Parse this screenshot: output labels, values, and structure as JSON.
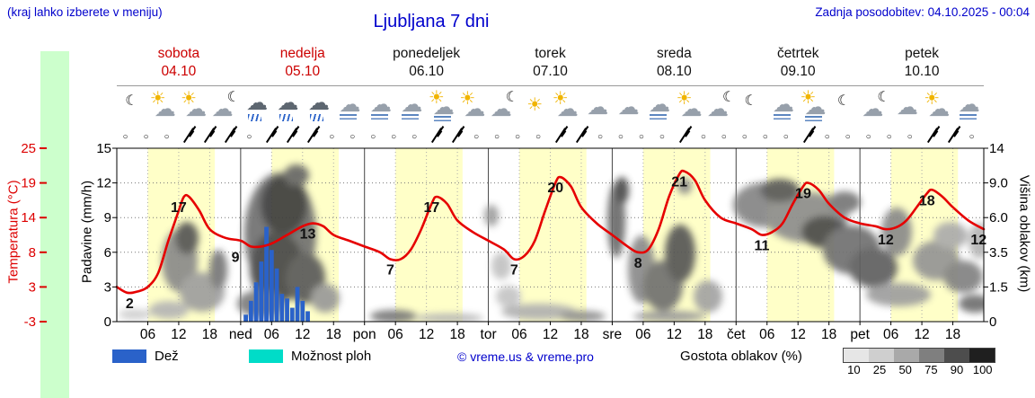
{
  "header": {
    "hint": "(kraj lahko izberete v meniju)",
    "title": "Ljubljana 7 dni",
    "updated": "Zadnja posodobitev: 04.10.2025 - 00:04"
  },
  "days": [
    {
      "name": "sobota",
      "date": "04.10",
      "weekend": true
    },
    {
      "name": "nedelja",
      "date": "05.10",
      "weekend": true
    },
    {
      "name": "ponedeljek",
      "date": "06.10",
      "weekend": false
    },
    {
      "name": "torek",
      "date": "07.10",
      "weekend": false
    },
    {
      "name": "sreda",
      "date": "08.10",
      "weekend": false
    },
    {
      "name": "četrtek",
      "date": "09.10",
      "weekend": false
    },
    {
      "name": "petek",
      "date": "10.10",
      "weekend": false
    }
  ],
  "axes": {
    "temp": {
      "label": "Temperatura (°C)",
      "ticks": [
        "25",
        "19",
        "14",
        "8",
        "3",
        "-3"
      ]
    },
    "precip": {
      "label": "Padavine (mm/h)",
      "ticks": [
        "15",
        "12",
        "9",
        "6",
        "3",
        "0"
      ]
    },
    "cloud": {
      "label": "Višina oblakov (km)",
      "ticks": [
        "14",
        "9.0",
        "6.0",
        "3.5",
        "1.5",
        "0"
      ]
    }
  },
  "day_abbrevs": [
    "ned",
    "pon",
    "tor",
    "sre",
    "čet",
    "pet"
  ],
  "hour_ticks": [
    "06",
    "12",
    "18"
  ],
  "icons": [
    "clear-night",
    "partly-sun",
    "partly-sun",
    "cloud-moon",
    "rain",
    "rain",
    "rain",
    "fog",
    "fog",
    "fog",
    "fog-sun",
    "partly-sun",
    "cloud-moon",
    "sun",
    "partly-sun",
    "cloudy",
    "cloudy",
    "fog",
    "partly-sun",
    "cloud-moon",
    "clear-night",
    "fog",
    "fog-sun",
    "clear-night",
    "cloud-moon",
    "cloudy",
    "partly-sun",
    "fog"
  ],
  "wind": {
    "calm_symbol": "○",
    "barb_hours": [
      14,
      18,
      22,
      30,
      34,
      38,
      62,
      66,
      86,
      90,
      110,
      134,
      158,
      162
    ]
  },
  "legend": {
    "rain": "Dež",
    "showers": "Možnost ploh",
    "copyright": "© vreme.us & vreme.pro",
    "cloud_density": "Gostota oblakov (%)",
    "density_values": [
      "10",
      "25",
      "50",
      "75",
      "90",
      "100"
    ]
  },
  "colors": {
    "accent_blue": "#0000cc",
    "temp_red": "#dd0000",
    "curve_red": "#e60000",
    "rain_blue": "#2a62c9",
    "showers_cyan": "#00dcc8",
    "day_band_yellow": "#ffffc8",
    "left_strip_green": "#ccffcc"
  },
  "chart_data": {
    "type": "line",
    "title": "Ljubljana 7 dni",
    "x_axis": {
      "unit": "hours",
      "range_hours": [
        0,
        168
      ],
      "day_labels": [
        "sobota 04.10",
        "nedelja 05.10",
        "ponedeljek 06.10",
        "torek 07.10",
        "sreda 08.10",
        "četrtek 09.10",
        "petek 10.10"
      ]
    },
    "temp_axis_values": [
      25,
      19,
      14,
      8,
      3,
      -3
    ],
    "precip_axis_max": 15,
    "cloud_height_axis_km": [
      14,
      9.0,
      6.0,
      3.5,
      1.5,
      0
    ],
    "temperature": {
      "name": "Temperatura",
      "unit": "°C",
      "points": [
        [
          0,
          3
        ],
        [
          2,
          2
        ],
        [
          4,
          2.2
        ],
        [
          6,
          3
        ],
        [
          8,
          5
        ],
        [
          10,
          10
        ],
        [
          12,
          15
        ],
        [
          13,
          17
        ],
        [
          14,
          17
        ],
        [
          16,
          15
        ],
        [
          18,
          12
        ],
        [
          21,
          10.5
        ],
        [
          24,
          10
        ],
        [
          26,
          9
        ],
        [
          28,
          9
        ],
        [
          30,
          9.5
        ],
        [
          33,
          11
        ],
        [
          36,
          12.5
        ],
        [
          38,
          13
        ],
        [
          40,
          12.5
        ],
        [
          42,
          11
        ],
        [
          45,
          10
        ],
        [
          48,
          9
        ],
        [
          51,
          8
        ],
        [
          53,
          7
        ],
        [
          55,
          7
        ],
        [
          57,
          8.5
        ],
        [
          59,
          12
        ],
        [
          61,
          16
        ],
        [
          62,
          17
        ],
        [
          64,
          16
        ],
        [
          66,
          13.5
        ],
        [
          69,
          11.5
        ],
        [
          72,
          10
        ],
        [
          75,
          8.5
        ],
        [
          77,
          7
        ],
        [
          79,
          7.5
        ],
        [
          81,
          10
        ],
        [
          83,
          15
        ],
        [
          85,
          19
        ],
        [
          86,
          20
        ],
        [
          88,
          18.5
        ],
        [
          90,
          15.5
        ],
        [
          93,
          13
        ],
        [
          96,
          11
        ],
        [
          99,
          9
        ],
        [
          101,
          8
        ],
        [
          103,
          8.5
        ],
        [
          105,
          12
        ],
        [
          107,
          17
        ],
        [
          109,
          20.5
        ],
        [
          110,
          21
        ],
        [
          112,
          19.5
        ],
        [
          114,
          16.5
        ],
        [
          117,
          14
        ],
        [
          120,
          13
        ],
        [
          123,
          12
        ],
        [
          125,
          11
        ],
        [
          127,
          11.5
        ],
        [
          129,
          13
        ],
        [
          131,
          16
        ],
        [
          133,
          18.5
        ],
        [
          134,
          19
        ],
        [
          136,
          18
        ],
        [
          138,
          16
        ],
        [
          141,
          14
        ],
        [
          144,
          13
        ],
        [
          147,
          12.5
        ],
        [
          149,
          12
        ],
        [
          151,
          12.3
        ],
        [
          153,
          13.5
        ],
        [
          155,
          15.5
        ],
        [
          157,
          17.5
        ],
        [
          158,
          18
        ],
        [
          160,
          17
        ],
        [
          162,
          15.5
        ],
        [
          165,
          13.5
        ],
        [
          168,
          12
        ]
      ]
    },
    "temperature_labels": [
      {
        "h": 2.5,
        "t": 2,
        "text": "2"
      },
      {
        "h": 12,
        "t": 17,
        "text": "17"
      },
      {
        "h": 23,
        "t": 9,
        "text": "9"
      },
      {
        "h": 37,
        "t": 13,
        "text": "13"
      },
      {
        "h": 53,
        "t": 7,
        "text": "7"
      },
      {
        "h": 61,
        "t": 17,
        "text": "17"
      },
      {
        "h": 77,
        "t": 7,
        "text": "7"
      },
      {
        "h": 85,
        "t": 20,
        "text": "20"
      },
      {
        "h": 101,
        "t": 8,
        "text": "8"
      },
      {
        "h": 109,
        "t": 21,
        "text": "21"
      },
      {
        "h": 125,
        "t": 11,
        "text": "11"
      },
      {
        "h": 133,
        "t": 19,
        "text": "19"
      },
      {
        "h": 149,
        "t": 12,
        "text": "12"
      },
      {
        "h": 157,
        "t": 18,
        "text": "18"
      },
      {
        "h": 167,
        "t": 12,
        "text": "12"
      }
    ],
    "precipitation": {
      "name": "Dež",
      "unit": "mm/h",
      "bars": [
        [
          25,
          0.6
        ],
        [
          26,
          1.8
        ],
        [
          27,
          3.4
        ],
        [
          28,
          5.2
        ],
        [
          29,
          8.2
        ],
        [
          30,
          6.2
        ],
        [
          31,
          4.6
        ],
        [
          32,
          2.4
        ],
        [
          33,
          2.0
        ],
        [
          34,
          1.2
        ],
        [
          35,
          3.0
        ],
        [
          36,
          1.8
        ],
        [
          37,
          0.9
        ]
      ]
    }
  }
}
